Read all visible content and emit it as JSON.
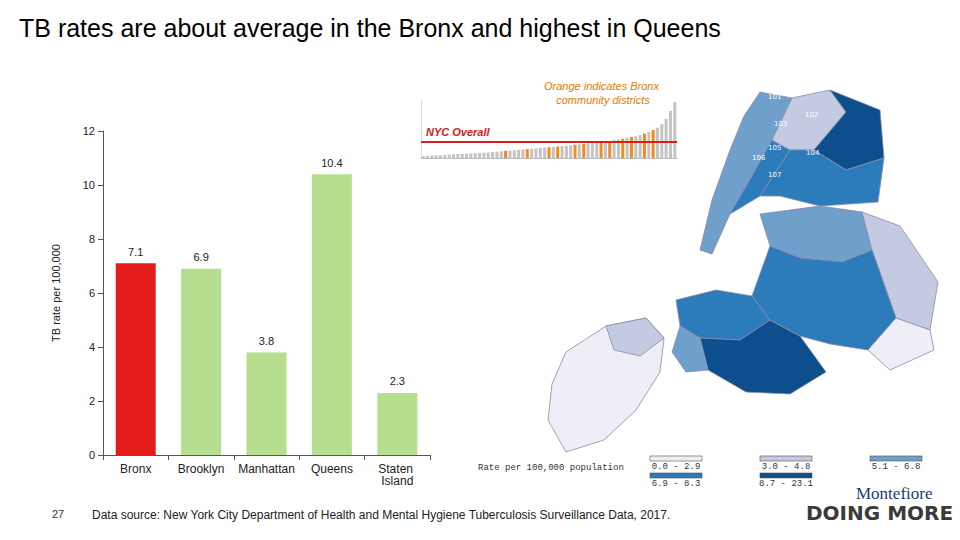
{
  "chart_data": [
    {
      "type": "bar",
      "title": "TB rates are about average in the Bronx and highest in Queens",
      "y_label": "TB rate per 100,000",
      "categories": [
        "Bronx",
        "Brooklyn",
        "Manhattan",
        "Queens",
        "Staten Island"
      ],
      "values": [
        7.1,
        6.9,
        3.8,
        10.4,
        2.3
      ],
      "colors": [
        "#e31b1b",
        "#b5de8e",
        "#b5de8e",
        "#b5de8e",
        "#b5de8e"
      ],
      "ylim": [
        0,
        12
      ],
      "yticks": [
        0,
        2,
        4,
        6,
        8,
        10,
        12
      ],
      "grid": false,
      "data_labels": true
    },
    {
      "type": "bar",
      "annotation": "Orange indicates Bronx community districts",
      "categories": [
        null,
        null,
        null,
        null,
        null,
        null,
        null,
        null,
        null,
        null,
        null,
        null,
        null,
        null,
        null,
        null,
        null,
        null,
        null,
        null,
        null,
        null,
        null,
        null,
        null,
        null,
        null,
        null,
        null,
        null,
        null,
        null,
        null,
        null,
        null,
        null,
        null,
        null,
        null,
        null,
        null,
        null,
        null,
        null,
        null,
        null,
        null,
        null,
        null,
        null,
        null,
        null,
        null,
        null,
        null,
        null,
        null,
        null,
        null
      ],
      "values": [
        0.8,
        0.9,
        1.0,
        1.1,
        1.2,
        1.3,
        1.4,
        1.5,
        1.6,
        1.7,
        1.8,
        1.9,
        2.0,
        2.1,
        2.2,
        2.3,
        2.5,
        2.6,
        2.8,
        3.0,
        3.1,
        3.2,
        3.4,
        3.5,
        3.7,
        3.8,
        4.0,
        4.2,
        4.3,
        4.5,
        4.6,
        4.8,
        5.0,
        5.1,
        5.3,
        5.5,
        5.7,
        5.9,
        6.0,
        6.2,
        6.4,
        6.6,
        6.9,
        7.1,
        7.4,
        7.7,
        8.0,
        8.3,
        8.7,
        9.0,
        9.5,
        10.1,
        10.8,
        11.6,
        12.5,
        14.0,
        16.2,
        19.5,
        23.1
      ],
      "colors": [
        "#c4c4c4",
        "#c4c4c4",
        "#c4c4c4",
        "#c4c4c4",
        "#c4c4c4",
        "#c4c4c4",
        "#c4c4c4",
        "#c4c4c4",
        "#c4c4c4",
        "#c4c4c4",
        "#c4c4c4",
        "#c4c4c4",
        "#c4c4c4",
        "#c4c4c4",
        "#c4c4c4",
        "#c4c4c4",
        "#c4c4c4",
        "#c4c4c4",
        "#c4c4c4",
        "#f28c1e",
        "#c4c4c4",
        "#c4c4c4",
        "#c4c4c4",
        "#c4c4c4",
        "#f28c1e",
        "#c4c4c4",
        "#c4c4c4",
        "#c4c4c4",
        "#c4c4c4",
        "#f28c1e",
        "#c4c4c4",
        "#f28c1e",
        "#c4c4c4",
        "#c4c4c4",
        "#c4c4c4",
        "#f28c1e",
        "#c4c4c4",
        "#f28c1e",
        "#c4c4c4",
        "#c4c4c4",
        "#c4c4c4",
        "#f28c1e",
        "#c4c4c4",
        "#f28c1e",
        "#c4c4c4",
        "#c4c4c4",
        "#f28c1e",
        "#c4c4c4",
        "#f28c1e",
        "#c4c4c4",
        "#c4c4c4",
        "#f28c1e",
        "#c4c4c4",
        "#f28c1e",
        "#c4c4c4",
        "#c4c4c4",
        "#c4c4c4",
        "#c4c4c4",
        "#c4c4c4"
      ],
      "ylim": [
        0,
        24
      ],
      "tick_labels": false,
      "grid": false,
      "reference_line": {
        "label": "NYC Overall",
        "value": 6.6,
        "color": "#d62020"
      }
    }
  ],
  "map": {
    "district_labels": [
      "101",
      "102",
      "103",
      "104",
      "105",
      "106",
      "107"
    ],
    "legend_title": "Rate per 100,000 population",
    "legend": [
      {
        "label": "0.0 - 2.9",
        "color": "#eeeef6"
      },
      {
        "label": "3.0 - 4.8",
        "color": "#c3cae2"
      },
      {
        "label": "5.1 - 6.8",
        "color": "#6f9fcb"
      },
      {
        "label": "6.9 - 8.3",
        "color": "#2c7bbb"
      },
      {
        "label": "8.7 - 23.1",
        "color": "#0c4f8c"
      }
    ]
  },
  "page_number": "27",
  "source": "Data source: New York City Department of Health and Mental Hygiene Tuberculosis Surveillance Data, 2017.",
  "logo": {
    "name": "Montefiore",
    "tagline": "DOING MORE"
  }
}
